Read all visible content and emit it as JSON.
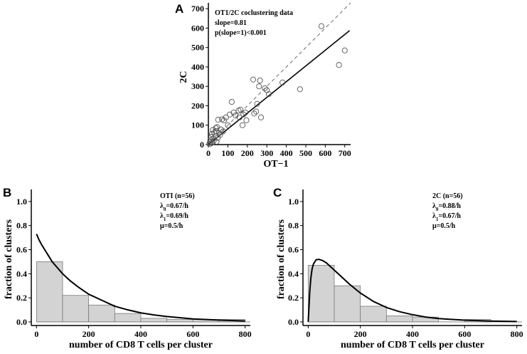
{
  "colors": {
    "axis": "#000000",
    "bar_fill": "#d3d3d3",
    "bar_stroke": "#7a7a7a",
    "point_stroke": "#555555",
    "dashed": "#777777"
  },
  "chart_data": [
    {
      "type": "scatter",
      "panel_label": "A",
      "title": "OT1/2C coclustering data",
      "annotations": [
        "slope=0.81",
        "p(slope=1)<0.001"
      ],
      "xlabel": "OT−1",
      "ylabel": "2C",
      "xlim": [
        0,
        730
      ],
      "ylim": [
        0,
        730
      ],
      "xticks": [
        0,
        100,
        200,
        300,
        400,
        500,
        600,
        700
      ],
      "yticks": [
        0,
        100,
        200,
        300,
        400,
        500,
        600,
        700
      ],
      "fit_line": {
        "slope": 0.81,
        "intercept": 0,
        "style": "solid"
      },
      "identity_line": {
        "slope": 1,
        "intercept": 0,
        "style": "dashed"
      },
      "points": [
        [
          5,
          3
        ],
        [
          8,
          12
        ],
        [
          10,
          25
        ],
        [
          12,
          5
        ],
        [
          15,
          40
        ],
        [
          18,
          55
        ],
        [
          20,
          10
        ],
        [
          22,
          75
        ],
        [
          25,
          30
        ],
        [
          28,
          20
        ],
        [
          30,
          62
        ],
        [
          35,
          45
        ],
        [
          38,
          85
        ],
        [
          40,
          70
        ],
        [
          42,
          15
        ],
        [
          45,
          90
        ],
        [
          48,
          35
        ],
        [
          50,
          128
        ],
        [
          55,
          60
        ],
        [
          60,
          50
        ],
        [
          65,
          78
        ],
        [
          70,
          130
        ],
        [
          75,
          68
        ],
        [
          80,
          125
        ],
        [
          90,
          140
        ],
        [
          100,
          100
        ],
        [
          110,
          155
        ],
        [
          120,
          220
        ],
        [
          130,
          165
        ],
        [
          140,
          150
        ],
        [
          155,
          175
        ],
        [
          160,
          140
        ],
        [
          165,
          180
        ],
        [
          175,
          100
        ],
        [
          180,
          155
        ],
        [
          190,
          165
        ],
        [
          195,
          125
        ],
        [
          230,
          335
        ],
        [
          235,
          160
        ],
        [
          245,
          170
        ],
        [
          250,
          210
        ],
        [
          260,
          300
        ],
        [
          265,
          330
        ],
        [
          270,
          140
        ],
        [
          290,
          290
        ],
        [
          300,
          280
        ],
        [
          310,
          260
        ],
        [
          380,
          320
        ],
        [
          470,
          285
        ],
        [
          580,
          610
        ],
        [
          670,
          410
        ],
        [
          700,
          485
        ]
      ]
    },
    {
      "type": "histogram",
      "panel_label": "B",
      "xlabel": "number of CD8 T cells per cluster",
      "ylabel": "fraction of clusters",
      "xlim": [
        -20,
        820
      ],
      "ylim": [
        -0.03,
        1.1
      ],
      "xticks": [
        0,
        200,
        400,
        600,
        800
      ],
      "yticks": [
        "0.0",
        "0.2",
        "0.4",
        "0.6",
        "0.8",
        "1.0"
      ],
      "legend": [
        "OTI (n=56)",
        "λ0=0.67/h",
        "λ1=0.69/h",
        "μ=0.5/h"
      ],
      "bin_width": 100,
      "bin_starts": [
        0,
        100,
        200,
        300,
        400,
        500,
        600,
        700
      ],
      "values": [
        0.5,
        0.22,
        0.14,
        0.07,
        0.03,
        0.02,
        0.02,
        0.02
      ],
      "curve": {
        "x": [
          0,
          10,
          20,
          40,
          60,
          80,
          100,
          130,
          160,
          200,
          250,
          300,
          350,
          400,
          450,
          500,
          600,
          700,
          800
        ],
        "y": [
          0.73,
          0.68,
          0.64,
          0.57,
          0.5,
          0.45,
          0.4,
          0.34,
          0.29,
          0.23,
          0.18,
          0.13,
          0.1,
          0.075,
          0.058,
          0.045,
          0.025,
          0.015,
          0.008
        ]
      }
    },
    {
      "type": "histogram",
      "panel_label": "C",
      "xlabel": "number of CD8 T cells per cluster",
      "ylabel": "fraction of clusters",
      "xlim": [
        -20,
        820
      ],
      "ylim": [
        -0.03,
        1.1
      ],
      "xticks": [
        0,
        200,
        400,
        600,
        800
      ],
      "yticks": [
        "0.0",
        "0.2",
        "0.4",
        "0.6",
        "0.8",
        "1.0"
      ],
      "legend": [
        "2C (n=56)",
        "λ0=0.88/h",
        "λ1=0.67/h",
        "μ=0.5/h"
      ],
      "bin_width": 100,
      "bin_starts": [
        0,
        100,
        200,
        300,
        400,
        500,
        600
      ],
      "values": [
        0.47,
        0.3,
        0.13,
        0.05,
        0.04,
        0.0,
        0.02
      ],
      "curve": {
        "x": [
          0,
          3,
          6,
          10,
          15,
          20,
          30,
          40,
          55,
          70,
          90,
          110,
          130,
          160,
          200,
          250,
          300,
          350,
          400,
          450,
          500,
          600,
          700,
          800
        ],
        "y": [
          0.0,
          0.12,
          0.25,
          0.36,
          0.44,
          0.48,
          0.515,
          0.52,
          0.51,
          0.49,
          0.45,
          0.41,
          0.37,
          0.31,
          0.24,
          0.17,
          0.12,
          0.085,
          0.06,
          0.04,
          0.028,
          0.014,
          0.007,
          0.003
        ]
      }
    }
  ]
}
